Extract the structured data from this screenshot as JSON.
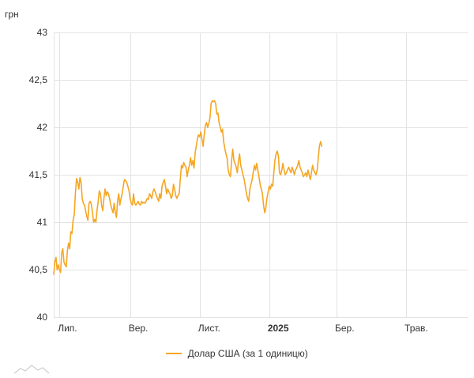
{
  "chart_data": {
    "type": "line",
    "title": "",
    "ylabel": "грн",
    "xlabel": "",
    "ylim": [
      40,
      43
    ],
    "y_ticks": [
      "40",
      "40,5",
      "41",
      "41,5",
      "42",
      "42,5",
      "43"
    ],
    "y_tick_values": [
      40,
      40.5,
      41,
      41.5,
      42,
      42.5,
      43
    ],
    "x_tick_labels": [
      {
        "label": "Лип.",
        "day": 0,
        "bold": false
      },
      {
        "label": "Вер.",
        "day": 62,
        "bold": false
      },
      {
        "label": "Лист.",
        "day": 123,
        "bold": false
      },
      {
        "label": "2025",
        "day": 184,
        "bold": true
      },
      {
        "label": "Бер.",
        "day": 243,
        "bold": false
      },
      {
        "label": "Трав.",
        "day": 304,
        "bold": false
      }
    ],
    "x_range_days": [
      -5,
      358
    ],
    "grid": true,
    "legend_position": "bottom",
    "series": [
      {
        "name": "Долар США (за 1 одиницю)",
        "color": "#f5a623",
        "points": [
          [
            -5,
            40.45
          ],
          [
            -4,
            40.58
          ],
          [
            -3,
            40.63
          ],
          [
            -2,
            40.5
          ],
          [
            -1,
            40.55
          ],
          [
            0,
            40.5
          ],
          [
            1,
            40.47
          ],
          [
            2,
            40.68
          ],
          [
            3,
            40.72
          ],
          [
            4,
            40.58
          ],
          [
            5,
            40.55
          ],
          [
            6,
            40.53
          ],
          [
            7,
            40.7
          ],
          [
            8,
            40.78
          ],
          [
            9,
            40.72
          ],
          [
            10,
            40.9
          ],
          [
            11,
            40.88
          ],
          [
            12,
            41.02
          ],
          [
            13,
            41.08
          ],
          [
            14,
            41.3
          ],
          [
            15,
            41.46
          ],
          [
            16,
            41.42
          ],
          [
            17,
            41.35
          ],
          [
            18,
            41.47
          ],
          [
            19,
            41.42
          ],
          [
            20,
            41.25
          ],
          [
            21,
            41.2
          ],
          [
            22,
            41.18
          ],
          [
            23,
            41.12
          ],
          [
            24,
            41.06
          ],
          [
            25,
            41.02
          ],
          [
            26,
            41.2
          ],
          [
            27,
            41.22
          ],
          [
            28,
            41.19
          ],
          [
            29,
            41.1
          ],
          [
            30,
            41.0
          ],
          [
            31,
            41.03
          ],
          [
            32,
            41.0
          ],
          [
            33,
            41.13
          ],
          [
            34,
            41.22
          ],
          [
            35,
            41.33
          ],
          [
            36,
            41.3
          ],
          [
            37,
            41.18
          ],
          [
            38,
            41.12
          ],
          [
            39,
            41.25
          ],
          [
            40,
            41.35
          ],
          [
            41,
            41.28
          ],
          [
            42,
            41.32
          ],
          [
            43,
            41.3
          ],
          [
            44,
            41.25
          ],
          [
            45,
            41.18
          ],
          [
            46,
            41.14
          ],
          [
            47,
            41.1
          ],
          [
            48,
            41.2
          ],
          [
            49,
            41.1
          ],
          [
            50,
            41.05
          ],
          [
            51,
            41.22
          ],
          [
            52,
            41.3
          ],
          [
            53,
            41.18
          ],
          [
            54,
            41.25
          ],
          [
            55,
            41.3
          ],
          [
            56,
            41.38
          ],
          [
            57,
            41.45
          ],
          [
            58,
            41.44
          ],
          [
            59,
            41.42
          ],
          [
            60,
            41.38
          ],
          [
            61,
            41.33
          ],
          [
            62,
            41.25
          ],
          [
            63,
            41.2
          ],
          [
            64,
            41.18
          ],
          [
            65,
            41.3
          ],
          [
            66,
            41.2
          ],
          [
            67,
            41.18
          ],
          [
            68,
            41.2
          ],
          [
            69,
            41.22
          ],
          [
            70,
            41.19
          ],
          [
            71,
            41.18
          ],
          [
            72,
            41.22
          ],
          [
            73,
            41.2
          ],
          [
            74,
            41.21
          ],
          [
            75,
            41.2
          ],
          [
            76,
            41.22
          ],
          [
            77,
            41.25
          ],
          [
            78,
            41.24
          ],
          [
            79,
            41.3
          ],
          [
            80,
            41.28
          ],
          [
            81,
            41.25
          ],
          [
            82,
            41.32
          ],
          [
            83,
            41.35
          ],
          [
            84,
            41.32
          ],
          [
            85,
            41.28
          ],
          [
            86,
            41.25
          ],
          [
            87,
            41.22
          ],
          [
            88,
            41.3
          ],
          [
            89,
            41.25
          ],
          [
            90,
            41.38
          ],
          [
            91,
            41.42
          ],
          [
            92,
            41.45
          ],
          [
            93,
            41.38
          ],
          [
            94,
            41.3
          ],
          [
            95,
            41.35
          ],
          [
            96,
            41.32
          ],
          [
            97,
            41.3
          ],
          [
            98,
            41.25
          ],
          [
            99,
            41.28
          ],
          [
            100,
            41.4
          ],
          [
            101,
            41.35
          ],
          [
            102,
            41.28
          ],
          [
            103,
            41.25
          ],
          [
            104,
            41.28
          ],
          [
            105,
            41.3
          ],
          [
            106,
            41.45
          ],
          [
            107,
            41.6
          ],
          [
            108,
            41.57
          ],
          [
            109,
            41.63
          ],
          [
            110,
            41.6
          ],
          [
            111,
            41.58
          ],
          [
            112,
            41.48
          ],
          [
            113,
            41.55
          ],
          [
            114,
            41.6
          ],
          [
            115,
            41.68
          ],
          [
            116,
            41.6
          ],
          [
            117,
            41.65
          ],
          [
            118,
            41.57
          ],
          [
            119,
            41.73
          ],
          [
            120,
            41.8
          ],
          [
            121,
            41.88
          ],
          [
            122,
            41.92
          ],
          [
            123,
            41.9
          ],
          [
            124,
            41.95
          ],
          [
            125,
            41.87
          ],
          [
            126,
            41.8
          ],
          [
            127,
            41.92
          ],
          [
            128,
            42.02
          ],
          [
            129,
            42.05
          ],
          [
            130,
            42.0
          ],
          [
            131,
            42.04
          ],
          [
            132,
            42.1
          ],
          [
            133,
            42.25
          ],
          [
            134,
            42.28
          ],
          [
            135,
            42.27
          ],
          [
            136,
            42.28
          ],
          [
            137,
            42.25
          ],
          [
            138,
            42.14
          ],
          [
            139,
            42.15
          ],
          [
            140,
            42.05
          ],
          [
            141,
            42.0
          ],
          [
            142,
            41.95
          ],
          [
            143,
            41.98
          ],
          [
            144,
            41.85
          ],
          [
            145,
            41.78
          ],
          [
            146,
            41.72
          ],
          [
            147,
            41.68
          ],
          [
            148,
            41.55
          ],
          [
            149,
            41.5
          ],
          [
            150,
            41.48
          ],
          [
            151,
            41.65
          ],
          [
            152,
            41.77
          ],
          [
            153,
            41.65
          ],
          [
            154,
            41.62
          ],
          [
            155,
            41.58
          ],
          [
            156,
            41.52
          ],
          [
            157,
            41.65
          ],
          [
            158,
            41.72
          ],
          [
            159,
            41.6
          ],
          [
            160,
            41.55
          ],
          [
            161,
            41.5
          ],
          [
            162,
            41.45
          ],
          [
            163,
            41.38
          ],
          [
            164,
            41.3
          ],
          [
            165,
            41.25
          ],
          [
            166,
            41.22
          ],
          [
            167,
            41.35
          ],
          [
            168,
            41.4
          ],
          [
            169,
            41.45
          ],
          [
            170,
            41.53
          ],
          [
            171,
            41.6
          ],
          [
            172,
            41.55
          ],
          [
            173,
            41.62
          ],
          [
            174,
            41.55
          ],
          [
            175,
            41.48
          ],
          [
            176,
            41.4
          ],
          [
            177,
            41.35
          ],
          [
            178,
            41.3
          ],
          [
            179,
            41.18
          ],
          [
            180,
            41.1
          ],
          [
            181,
            41.15
          ],
          [
            182,
            41.25
          ],
          [
            183,
            41.32
          ],
          [
            184,
            41.38
          ],
          [
            185,
            41.35
          ],
          [
            186,
            41.4
          ],
          [
            187,
            41.38
          ],
          [
            188,
            41.52
          ],
          [
            189,
            41.65
          ],
          [
            190,
            41.72
          ],
          [
            191,
            41.75
          ],
          [
            192,
            41.7
          ],
          [
            193,
            41.52
          ],
          [
            194,
            41.5
          ],
          [
            195,
            41.55
          ],
          [
            196,
            41.62
          ],
          [
            197,
            41.55
          ],
          [
            198,
            41.5
          ],
          [
            199,
            41.52
          ],
          [
            200,
            41.55
          ],
          [
            201,
            41.58
          ],
          [
            202,
            41.55
          ],
          [
            203,
            41.52
          ],
          [
            204,
            41.58
          ],
          [
            205,
            41.55
          ],
          [
            206,
            41.5
          ],
          [
            207,
            41.55
          ],
          [
            208,
            41.57
          ],
          [
            209,
            41.6
          ],
          [
            210,
            41.65
          ],
          [
            211,
            41.58
          ],
          [
            212,
            41.55
          ],
          [
            213,
            41.52
          ],
          [
            214,
            41.48
          ],
          [
            215,
            41.5
          ],
          [
            216,
            41.52
          ],
          [
            217,
            41.48
          ],
          [
            218,
            41.55
          ],
          [
            219,
            41.5
          ],
          [
            220,
            41.45
          ],
          [
            221,
            41.52
          ],
          [
            222,
            41.6
          ],
          [
            223,
            41.55
          ],
          [
            224,
            41.52
          ],
          [
            225,
            41.5
          ],
          [
            226,
            41.55
          ],
          [
            227,
            41.68
          ],
          [
            228,
            41.8
          ],
          [
            229,
            41.85
          ],
          [
            230,
            41.8
          ]
        ]
      }
    ]
  },
  "legend": {
    "label": "Долар США (за 1 одиницю)"
  }
}
